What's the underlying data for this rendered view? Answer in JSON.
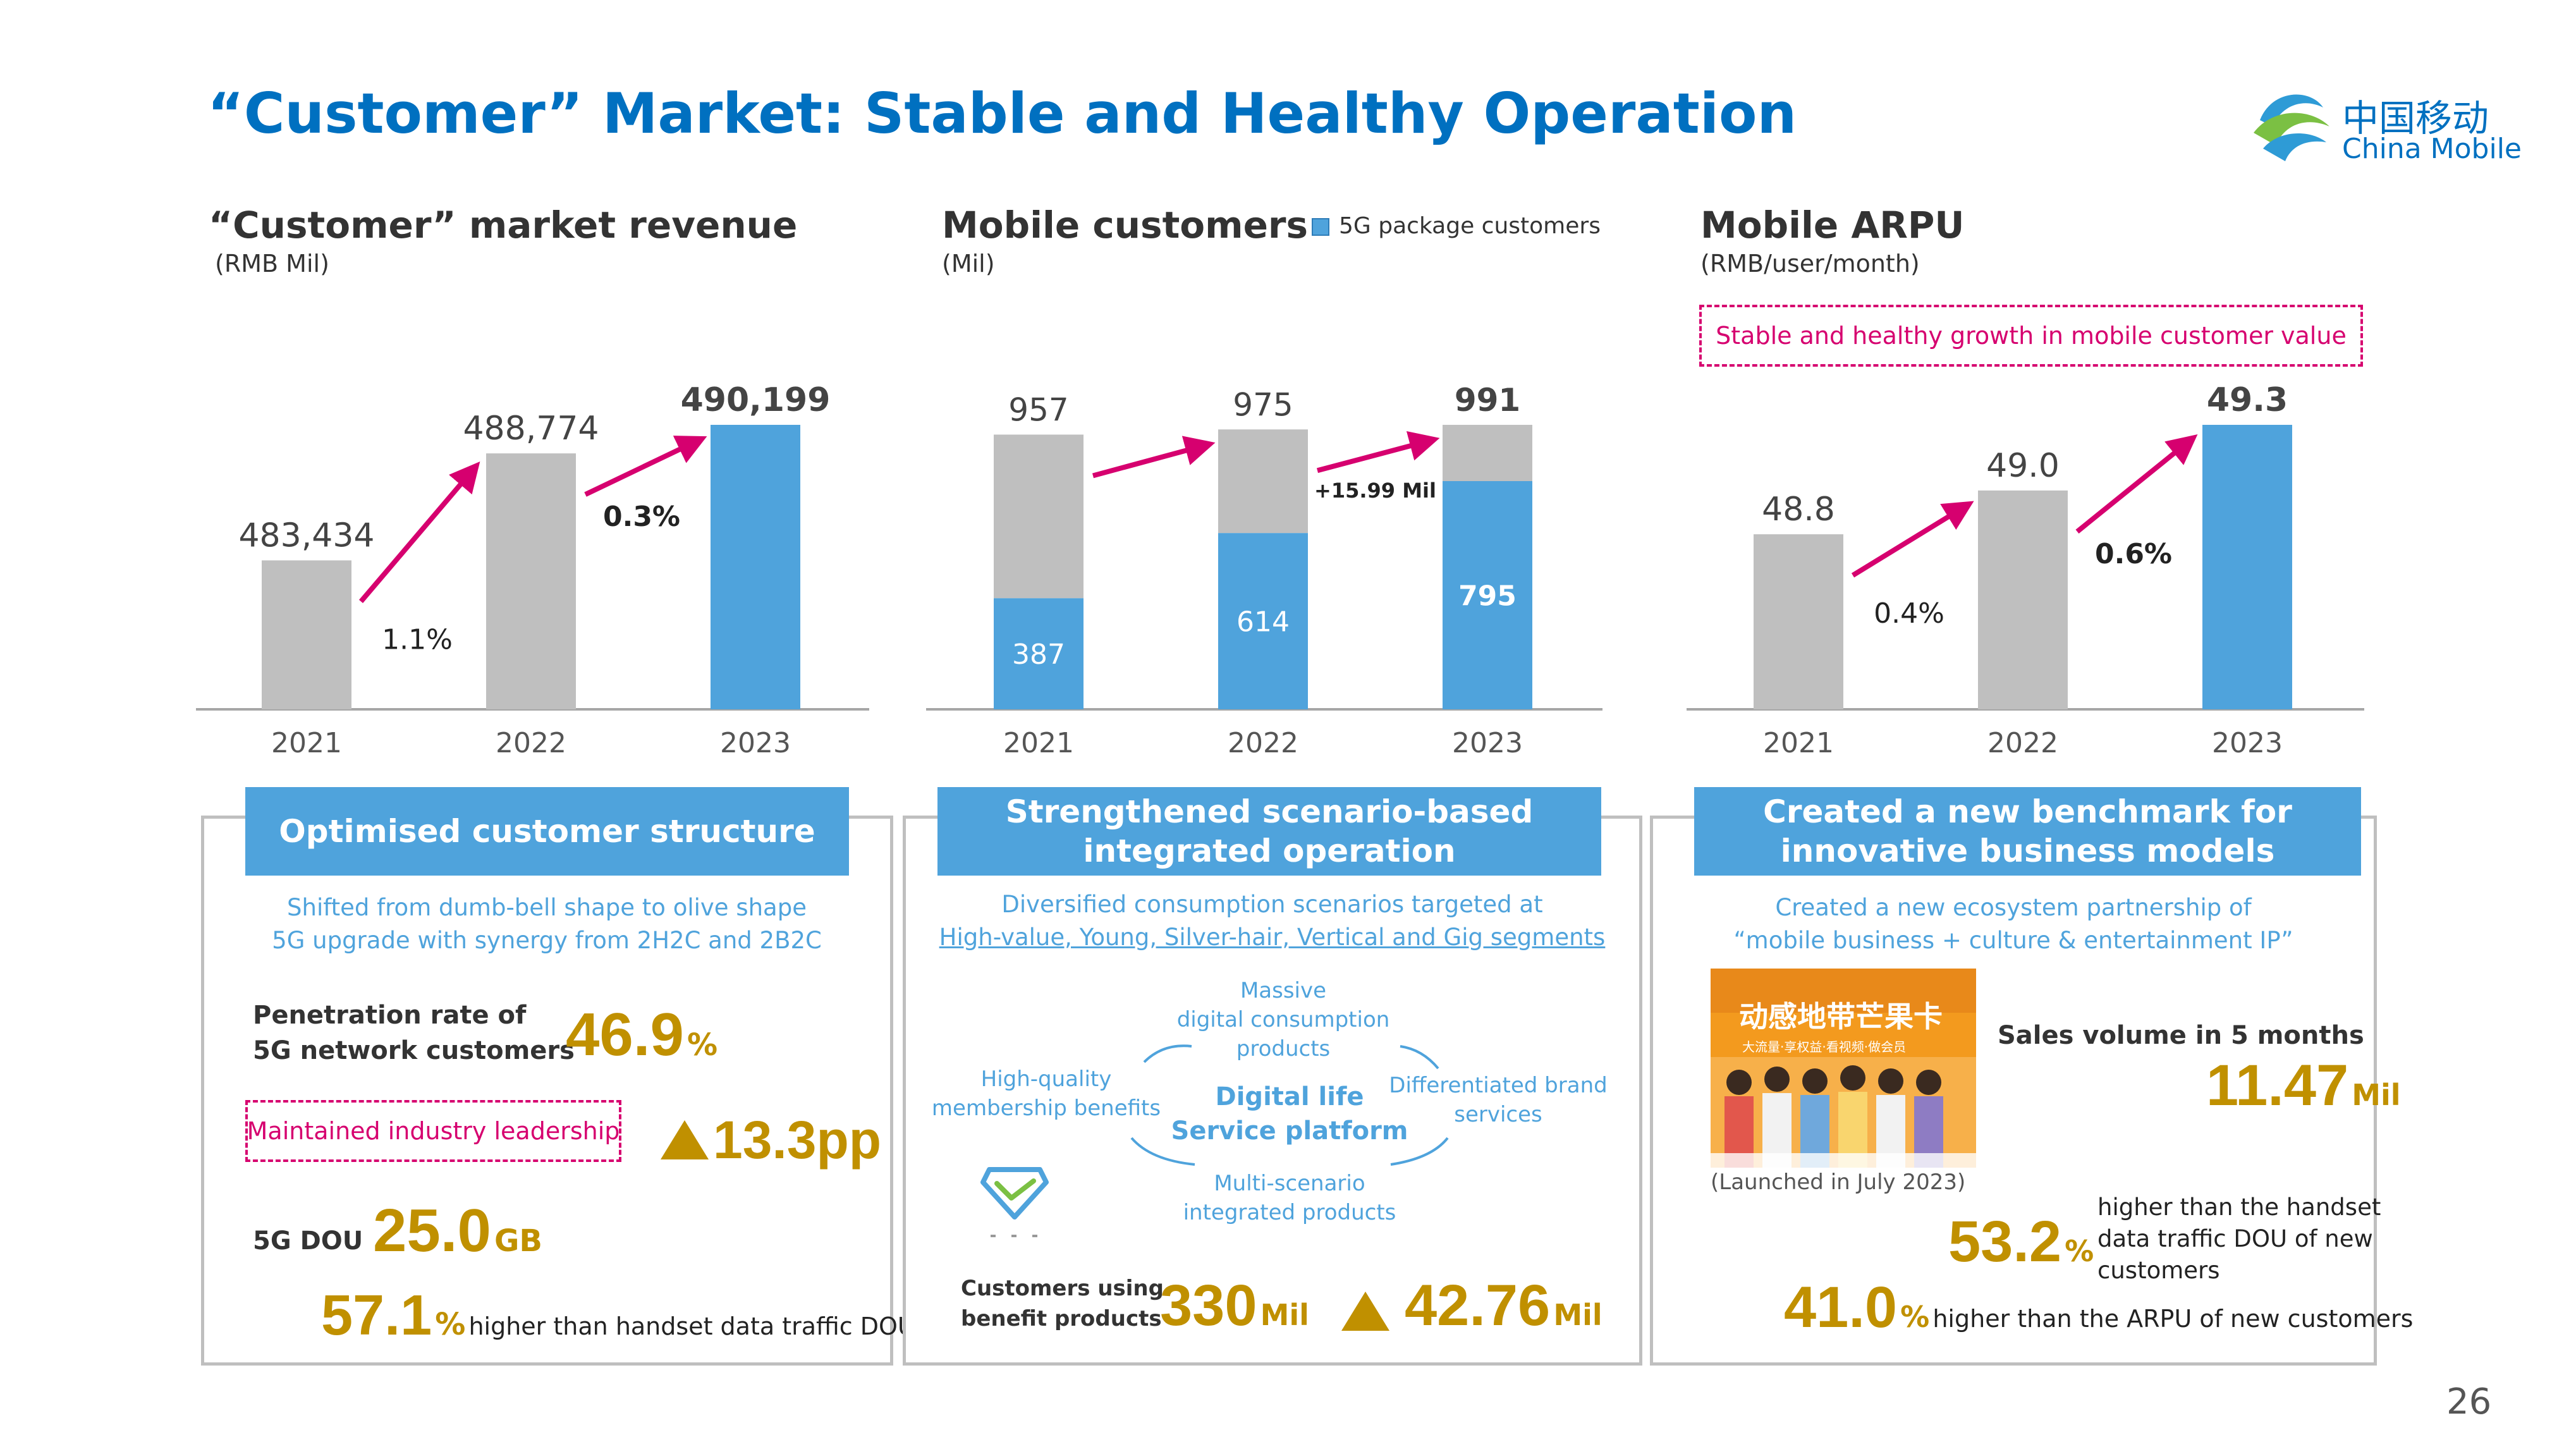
{
  "title": "“Customer” Market: Stable and Healthy Operation",
  "logo": {
    "cn": "中国移动",
    "en": "China Mobile"
  },
  "page_number": "26",
  "charts_meta": {
    "revenue": {
      "title": "“Customer” market revenue",
      "unit": "(RMB Mil)",
      "growth": [
        "1.1%",
        "0.3%"
      ]
    },
    "mobile": {
      "title": "Mobile customers",
      "unit": "(Mil)",
      "legend": "5G package customers",
      "annotation": "+15.99 Mil"
    },
    "arpu": {
      "title": "Mobile ARPU",
      "unit": "(RMB/user/month)",
      "callout": "Stable and healthy growth in mobile customer value",
      "growth": [
        "0.4%",
        "0.6%"
      ]
    }
  },
  "chart_data": [
    {
      "type": "bar",
      "title": "“Customer” market revenue",
      "ylabel": "(RMB Mil)",
      "categories": [
        "2021",
        "2022",
        "2023"
      ],
      "series": [
        {
          "values": [
            483434,
            488774,
            490199
          ]
        }
      ],
      "data_labels": [
        "483,434",
        "488,774",
        "490,199"
      ],
      "colors": [
        "#BFBFBF",
        "#BFBFBF",
        "#4FA3DC"
      ],
      "ylim": [
        0,
        490199
      ]
    },
    {
      "type": "bar",
      "title": "Mobile customers",
      "ylabel": "(Mil)",
      "stacked": true,
      "categories": [
        "2021",
        "2022",
        "2023"
      ],
      "series": [
        {
          "name": "5G package customers",
          "values": [
            387,
            614,
            795
          ],
          "color": "#4FA3DC"
        },
        {
          "values": [
            570,
            361,
            196
          ],
          "color": "#BFBFBF"
        }
      ],
      "totals": [
        957,
        975,
        991
      ],
      "ylim": [
        0,
        991
      ]
    },
    {
      "type": "bar",
      "title": "Mobile ARPU",
      "ylabel": "(RMB/user/month)",
      "categories": [
        "2021",
        "2022",
        "2023"
      ],
      "series": [
        {
          "values": [
            48.8,
            49.0,
            49.3
          ]
        }
      ],
      "data_labels": [
        "48.8",
        "49.0",
        "49.3"
      ],
      "colors": [
        "#BFBFBF",
        "#BFBFBF",
        "#4FA3DC"
      ],
      "ylim": [
        0,
        49.3
      ]
    }
  ],
  "panel1": {
    "header": "Optimised customer structure",
    "desc": [
      "Shifted from dumb-bell shape to olive shape",
      "5G upgrade with synergy from 2H2C and 2B2C"
    ],
    "penetration_label": [
      "Penetration rate of",
      "5G network customers"
    ],
    "penetration_value": "46.9",
    "penetration_unit": "%",
    "leadership": "Maintained industry leadership",
    "increase": "13.3pp",
    "dou_label": "5G DOU",
    "dou_value": "25.0",
    "dou_unit": "GB",
    "higher_value": "57.1",
    "higher_unit": "%",
    "higher_text": "higher than handset data traffic DOU"
  },
  "panel2": {
    "header": [
      "Strengthened scenario-based",
      "integrated operation"
    ],
    "desc": "Diversified consumption scenarios targeted at",
    "segments": "High-value, Young, Silver-hair, Vertical and Gig segments",
    "center": [
      "Digital life",
      "Service platform"
    ],
    "top": [
      "Massive",
      "digital consumption",
      "products"
    ],
    "left": [
      "High-quality",
      "membership benefits"
    ],
    "right": [
      "Differentiated brand",
      "services"
    ],
    "bottom": [
      "Multi-scenario",
      "integrated products"
    ],
    "customers_label": [
      "Customers using",
      "benefit products"
    ],
    "customers_value": "330",
    "customers_unit": "Mil",
    "increase_value": "42.76",
    "increase_unit": "Mil"
  },
  "panel3": {
    "header": [
      "Created a new benchmark for",
      "innovative business models"
    ],
    "desc": [
      "Created a new ecosystem partnership of",
      "“mobile business + culture & entertainment IP”"
    ],
    "poster_title": "动感地带芒果卡",
    "poster_sub": "大流量·享权益·看视频·做会员",
    "launched": "(Launched in July 2023)",
    "sales_label": "Sales volume in 5 months",
    "sales_value": "11.47",
    "sales_unit": "Mil",
    "dou_value": "53.2",
    "dou_unit": "%",
    "dou_text": [
      "higher than the handset",
      "data traffic DOU of new",
      "customers"
    ],
    "arpu_value": "41.0",
    "arpu_unit": "%",
    "arpu_text": "higher than the ARPU of new customers"
  }
}
